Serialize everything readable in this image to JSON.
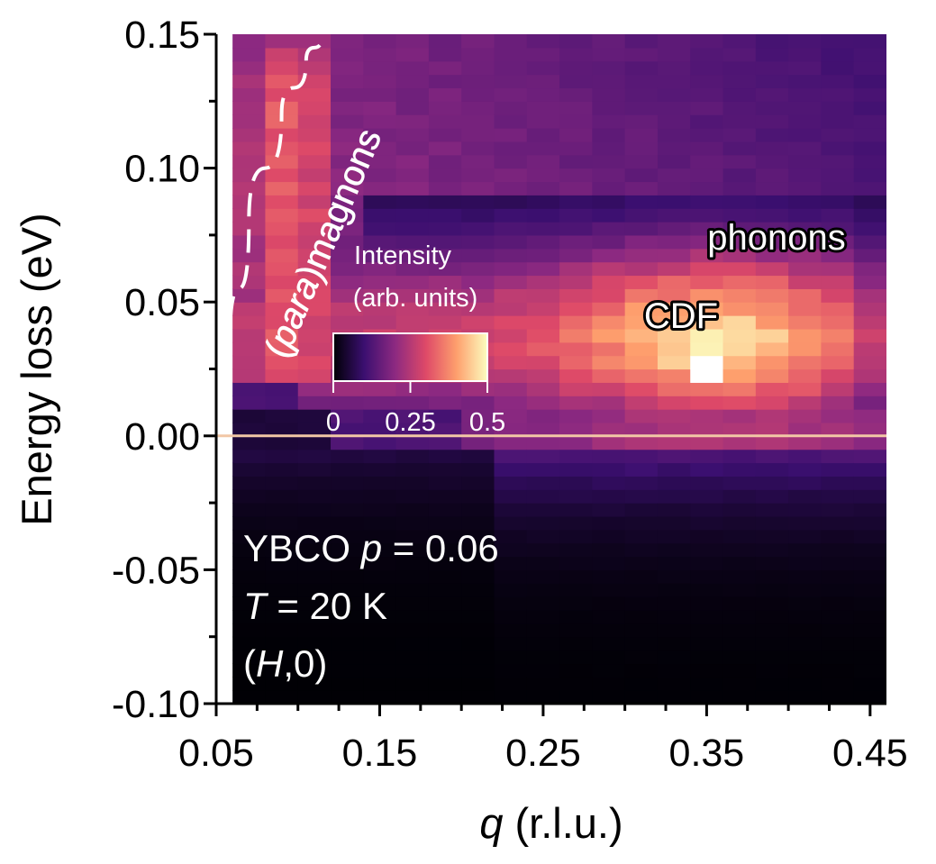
{
  "chart_data": {
    "type": "heatmap",
    "xlabel": "q (r.l.u.)",
    "ylabel": "Energy loss (eV)",
    "xlim": [
      0.05,
      0.46
    ],
    "ylim": [
      -0.1,
      0.15
    ],
    "x_ticks": [
      {
        "value": 0.05,
        "label": "0.05"
      },
      {
        "value": 0.15,
        "label": "0.15"
      },
      {
        "value": 0.25,
        "label": "0.25"
      },
      {
        "value": 0.35,
        "label": "0.35"
      },
      {
        "value": 0.45,
        "label": "0.45"
      }
    ],
    "y_ticks": [
      {
        "value": 0.15,
        "label": "0.15"
      },
      {
        "value": 0.1,
        "label": "0.10"
      },
      {
        "value": 0.05,
        "label": "0.05"
      },
      {
        "value": 0.0,
        "label": "0.00"
      },
      {
        "value": -0.05,
        "label": "-0.05"
      },
      {
        "value": -0.1,
        "label": "-0.10"
      }
    ],
    "data_x_range": [
      0.06,
      0.46
    ],
    "x_bins": 20,
    "y_bins": 50,
    "colorbar": {
      "title_line1": "Intensity",
      "title_line2": "(arb. units)",
      "range": [
        0,
        0.5
      ],
      "ticks": [
        {
          "value": 0,
          "label": "0"
        },
        {
          "value": 0.25,
          "label": "0.25"
        },
        {
          "value": 0.5,
          "label": "0.5"
        }
      ],
      "colormap": [
        "#000004",
        "#3b0f70",
        "#8c2981",
        "#de4968",
        "#fe9f6d",
        "#fcfdbf"
      ]
    },
    "features": {
      "elastic_line_energy": 0.0,
      "elastic_line_color": "#f2c7a5",
      "cdf_peak": {
        "q": 0.35,
        "energy": 0.028,
        "intensity": 0.5
      },
      "phonon_band": {
        "energy_center": 0.035,
        "q_range": [
          0.22,
          0.46
        ],
        "peak_intensity": 0.46
      },
      "paramagnon_region": {
        "q_range": [
          0.06,
          0.13
        ],
        "intensity": 0.32
      },
      "paramagnon_dispersion": [
        [
          0.058,
          0.03
        ],
        [
          0.07,
          0.08
        ],
        [
          0.09,
          0.12
        ],
        [
          0.105,
          0.14
        ],
        [
          0.115,
          0.15
        ]
      ]
    },
    "annotations": {
      "paramagnons_prefix": "(",
      "paramagnons_italic": "para",
      "paramagnons_suffix": ")magnons",
      "phonons": "phonons",
      "cdf": "CDF"
    }
  },
  "sample": {
    "line1_prefix": "YBCO ",
    "line1_italic": "p",
    "line1_suffix": " = 0.06",
    "line2_italic": "T",
    "line2_suffix": " = 20 K",
    "line3_prefix": "(",
    "line3_italic": "H",
    "line3_suffix": ",0)"
  },
  "labels": {
    "x_axis_italic": "q",
    "x_axis_suffix": " (r.l.u.)",
    "y_axis": "Energy loss (eV)"
  }
}
